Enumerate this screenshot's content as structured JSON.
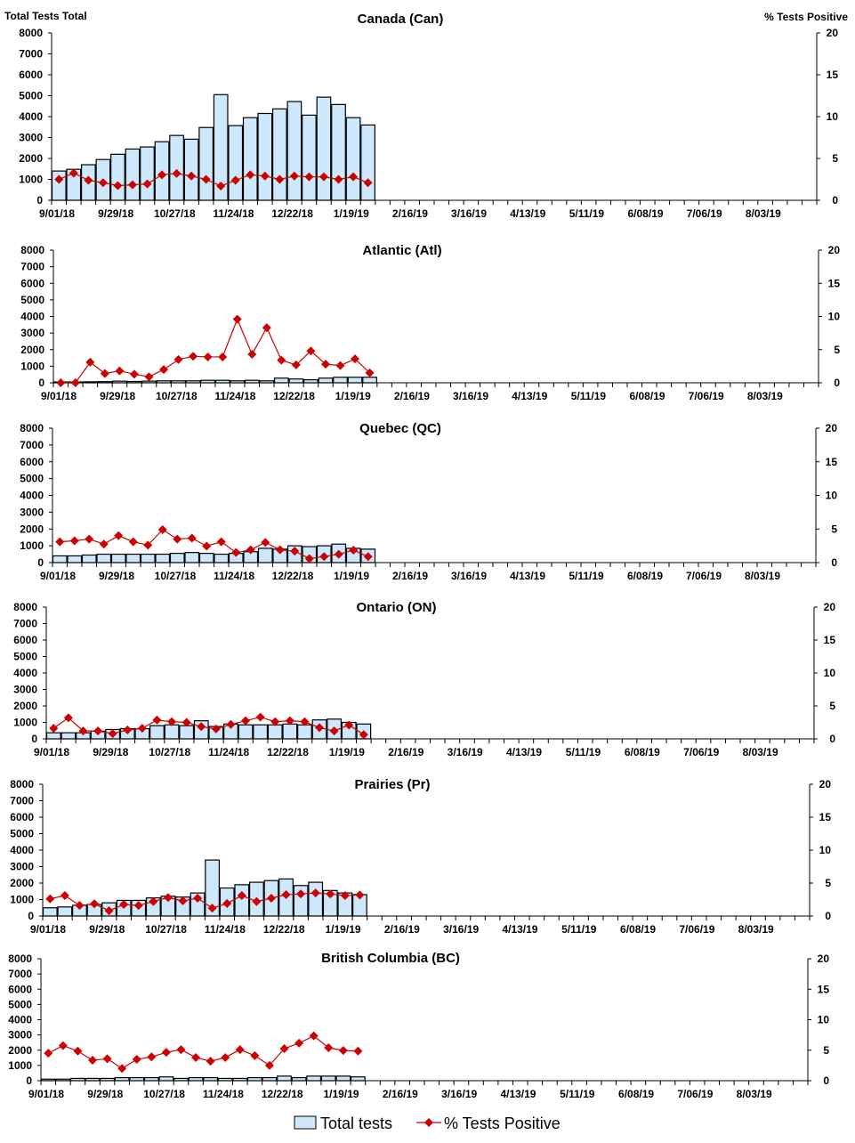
{
  "header": {
    "left_axis_title": "Total Tests Total",
    "right_axis_title": "% Tests Positive"
  },
  "legend": {
    "bars_label": "Total tests",
    "line_label": "% Tests Positive",
    "position": "bottom"
  },
  "colors": {
    "bar_fill": "#CCE8FA",
    "bar_stroke": "#000000",
    "line": "#CC0000"
  },
  "chart_data": [
    {
      "type": "bar+line",
      "title": "Canada (Can)",
      "ylim": [
        0,
        8000
      ],
      "y2lim": [
        0,
        20
      ],
      "x_tick_labels": [
        "9/01/18",
        "9/29/18",
        "10/27/18",
        "11/24/18",
        "12/22/18",
        "1/19/19",
        "2/16/19",
        "3/16/19",
        "4/13/19",
        "5/11/19",
        "6/08/19",
        "7/06/19",
        "8/03/19"
      ],
      "yticks": [
        0,
        1000,
        2000,
        3000,
        4000,
        5000,
        6000,
        7000,
        8000
      ],
      "y2ticks": [
        0,
        5,
        10,
        15,
        20
      ],
      "series": [
        {
          "name": "Total tests",
          "values": [
            1400,
            1480,
            1700,
            1950,
            2200,
            2450,
            2550,
            2800,
            3100,
            2920,
            3480,
            5050,
            3570,
            3950,
            4150,
            4370,
            4720,
            4070,
            4930,
            4580,
            3950,
            3600
          ]
        },
        {
          "name": "% Tests Positive",
          "values": [
            2.5,
            3.25,
            2.4,
            2.1,
            1.75,
            1.85,
            1.95,
            3.05,
            3.2,
            2.9,
            2.5,
            1.7,
            2.4,
            3.05,
            2.9,
            2.5,
            2.9,
            2.8,
            2.8,
            2.5,
            2.8,
            2.1
          ]
        }
      ]
    },
    {
      "type": "bar+line",
      "title": "Atlantic (Atl)",
      "ylim": [
        0,
        8000
      ],
      "y2lim": [
        0,
        20
      ],
      "x_tick_labels": [
        "9/01/18",
        "9/29/18",
        "10/27/18",
        "11/24/18",
        "12/22/18",
        "1/19/19",
        "2/16/19",
        "3/16/19",
        "4/13/19",
        "5/11/19",
        "6/08/19",
        "7/06/19",
        "8/03/19"
      ],
      "yticks": [
        0,
        1000,
        2000,
        3000,
        4000,
        5000,
        6000,
        7000,
        8000
      ],
      "y2ticks": [
        0,
        5,
        10,
        15,
        20
      ],
      "series": [
        {
          "name": "Total tests",
          "values": [
            50,
            50,
            60,
            70,
            100,
            80,
            100,
            120,
            120,
            120,
            150,
            150,
            120,
            150,
            120,
            280,
            230,
            180,
            280,
            330,
            330,
            330
          ]
        },
        {
          "name": "% Tests Positive",
          "values": [
            0,
            0,
            3.1,
            1.4,
            1.8,
            1.3,
            0.9,
            2.0,
            3.5,
            4.0,
            3.9,
            3.9,
            9.6,
            4.3,
            8.3,
            3.4,
            2.7,
            4.8,
            2.8,
            2.6,
            3.6,
            1.5
          ]
        }
      ]
    },
    {
      "type": "bar+line",
      "title": "Quebec (QC)",
      "ylim": [
        0,
        8000
      ],
      "y2lim": [
        0,
        20
      ],
      "x_tick_labels": [
        "9/01/18",
        "9/29/18",
        "10/27/18",
        "11/24/18",
        "12/22/18",
        "1/19/19",
        "2/16/19",
        "3/16/19",
        "4/13/19",
        "5/11/19",
        "6/08/19",
        "7/06/19",
        "8/03/19"
      ],
      "yticks": [
        0,
        1000,
        2000,
        3000,
        4000,
        5000,
        6000,
        7000,
        8000
      ],
      "y2ticks": [
        0,
        5,
        10,
        15,
        20
      ],
      "series": [
        {
          "name": "Total tests",
          "values": [
            400,
            400,
            450,
            500,
            500,
            500,
            500,
            500,
            550,
            600,
            550,
            500,
            550,
            650,
            850,
            800,
            1000,
            950,
            1000,
            1100,
            850,
            800
          ]
        },
        {
          "name": "% Tests Positive",
          "values": [
            3.1,
            3.25,
            3.5,
            2.75,
            4.0,
            3.1,
            2.6,
            4.9,
            3.5,
            3.65,
            2.45,
            3.1,
            1.5,
            1.9,
            3.0,
            1.9,
            1.7,
            0.6,
            0.9,
            1.25,
            1.85,
            0.9
          ]
        }
      ]
    },
    {
      "type": "bar+line",
      "title": "Ontario (ON)",
      "ylim": [
        0,
        8000
      ],
      "y2lim": [
        0,
        20
      ],
      "x_tick_labels": [
        "9/01/18",
        "9/29/18",
        "10/27/18",
        "11/24/18",
        "12/22/18",
        "1/19/19",
        "2/16/19",
        "3/16/19",
        "4/13/19",
        "5/11/19",
        "6/08/19",
        "7/06/19",
        "8/03/19"
      ],
      "yticks": [
        0,
        1000,
        2000,
        3000,
        4000,
        5000,
        6000,
        7000,
        8000
      ],
      "y2ticks": [
        0,
        5,
        10,
        15,
        20
      ],
      "series": [
        {
          "name": "Total tests",
          "values": [
            370,
            370,
            370,
            470,
            570,
            620,
            620,
            800,
            850,
            800,
            1100,
            750,
            900,
            850,
            850,
            850,
            900,
            850,
            1150,
            1200,
            1000,
            900
          ]
        },
        {
          "name": "% Tests Positive",
          "values": [
            1.6,
            3.2,
            1.2,
            1.2,
            0.8,
            1.35,
            1.6,
            2.85,
            2.6,
            2.5,
            1.85,
            1.5,
            2.2,
            2.75,
            3.3,
            2.6,
            2.75,
            2.6,
            1.7,
            1.2,
            2.1,
            0.65
          ]
        }
      ]
    },
    {
      "type": "bar+line",
      "title": "Prairies (Pr)",
      "ylim": [
        0,
        8000
      ],
      "y2lim": [
        0,
        20
      ],
      "x_tick_labels": [
        "9/01/18",
        "9/29/18",
        "10/27/18",
        "11/24/18",
        "12/22/18",
        "1/19/19",
        "2/16/19",
        "3/16/19",
        "4/13/19",
        "5/11/19",
        "6/08/19",
        "7/06/19",
        "8/03/19"
      ],
      "yticks": [
        0,
        1000,
        2000,
        3000,
        4000,
        5000,
        6000,
        7000,
        8000
      ],
      "y2ticks": [
        0,
        5,
        10,
        15,
        20
      ],
      "series": [
        {
          "name": "Total tests",
          "values": [
            500,
            550,
            650,
            700,
            800,
            950,
            950,
            1100,
            1200,
            1150,
            1400,
            3400,
            1700,
            1900,
            2050,
            2150,
            2250,
            1850,
            2050,
            1550,
            1400,
            1300
          ]
        },
        {
          "name": "% Tests Positive",
          "values": [
            2.6,
            3.1,
            1.6,
            1.85,
            0.8,
            1.75,
            1.6,
            2.2,
            2.8,
            2.3,
            2.7,
            1.2,
            1.9,
            3.1,
            2.2,
            2.7,
            3.25,
            3.35,
            3.5,
            3.35,
            3.1,
            3.2
          ]
        }
      ]
    },
    {
      "type": "bar+line",
      "title": "British Columbia (BC)",
      "ylim": [
        0,
        8000
      ],
      "y2lim": [
        0,
        20
      ],
      "x_tick_labels": [
        "9/01/18",
        "9/29/18",
        "10/27/18",
        "11/24/18",
        "12/22/18",
        "1/19/19",
        "2/16/19",
        "3/16/19",
        "4/13/19",
        "5/11/19",
        "6/08/19",
        "7/06/19",
        "8/03/19"
      ],
      "yticks": [
        0,
        1000,
        2000,
        3000,
        4000,
        5000,
        6000,
        7000,
        8000
      ],
      "y2ticks": [
        0,
        5,
        10,
        15,
        20
      ],
      "series": [
        {
          "name": "Total tests",
          "values": [
            100,
            100,
            150,
            150,
            150,
            200,
            200,
            200,
            250,
            150,
            200,
            200,
            150,
            150,
            200,
            200,
            300,
            200,
            300,
            300,
            300,
            250
          ]
        },
        {
          "name": "% Tests Positive",
          "values": [
            4.5,
            5.75,
            4.85,
            3.35,
            3.6,
            2.0,
            3.5,
            3.9,
            4.65,
            5.1,
            3.8,
            3.2,
            3.8,
            5.1,
            4.1,
            2.5,
            5.25,
            6.15,
            7.35,
            5.4,
            4.95,
            4.85
          ]
        }
      ]
    }
  ]
}
